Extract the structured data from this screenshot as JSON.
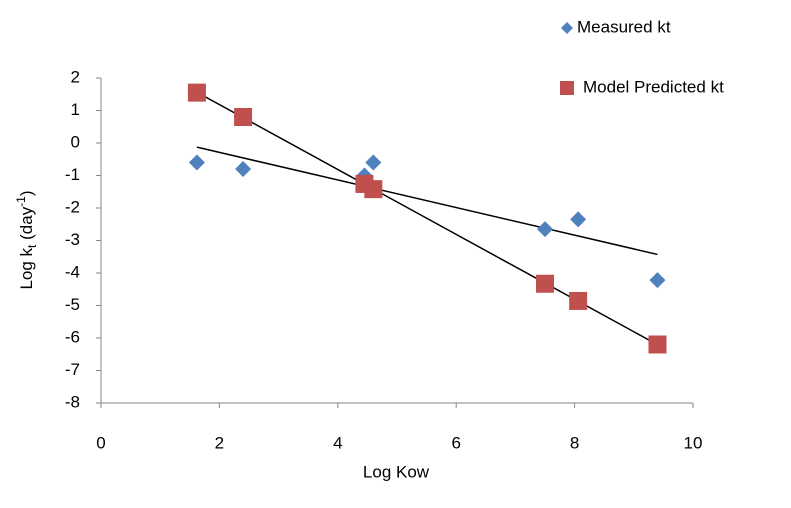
{
  "chart_data": {
    "type": "scatter",
    "xlabel": "Log Kow",
    "ylabel": [
      "Log k",
      "t",
      " (day",
      "-1",
      ")"
    ],
    "xlim": [
      0,
      10
    ],
    "xticks": [
      0,
      2,
      4,
      6,
      8,
      10
    ],
    "ylim": [
      -8,
      2
    ],
    "yticks": [
      -8,
      -7,
      -6,
      -5,
      -4,
      -3,
      -2,
      -1,
      0,
      1,
      2
    ],
    "legend": "top-right",
    "series": [
      {
        "name": "Measured kt",
        "color": "#4f81bd",
        "marker": "diamond",
        "trendline": true,
        "x": [
          1.62,
          2.4,
          4.45,
          4.6,
          7.5,
          8.06,
          9.4
        ],
        "values": [
          -0.6,
          -0.8,
          -1.0,
          -0.6,
          -2.65,
          -2.35,
          -4.22
        ]
      },
      {
        "name": "Model Predicted kt",
        "color": "#c0504d",
        "marker": "square",
        "trendline": true,
        "x": [
          1.62,
          2.4,
          4.45,
          4.6,
          7.5,
          8.06,
          9.4
        ],
        "values": [
          1.55,
          0.8,
          -1.26,
          -1.42,
          -4.33,
          -4.86,
          -6.2
        ]
      }
    ]
  }
}
